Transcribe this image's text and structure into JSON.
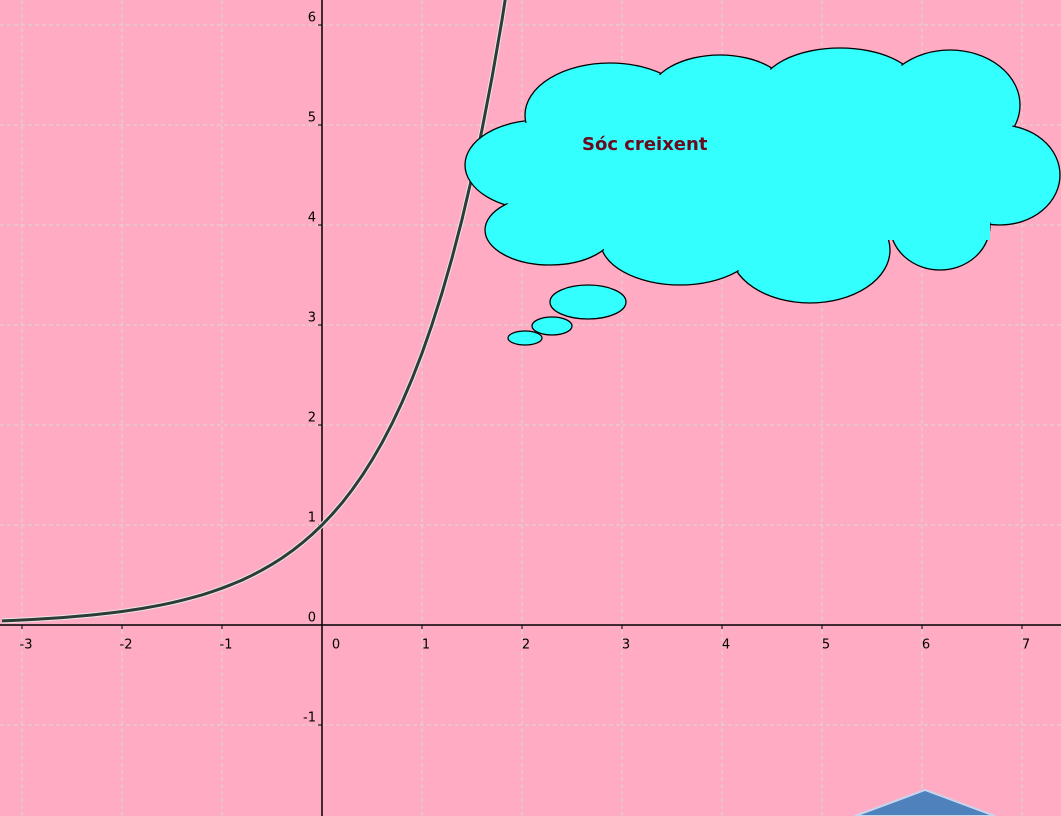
{
  "chart_data": {
    "type": "line",
    "annotation": "Sóc creixent",
    "x": [
      -3.2,
      -3.1,
      -3.0,
      -2.9,
      -2.8,
      -2.7,
      -2.6,
      -2.5,
      -2.4,
      -2.3,
      -2.2,
      -2.1,
      -2.0,
      -1.9,
      -1.8,
      -1.7,
      -1.6,
      -1.5,
      -1.4,
      -1.3,
      -1.2,
      -1.1,
      -1.0,
      -0.9,
      -0.8,
      -0.7,
      -0.6,
      -0.5,
      -0.4,
      -0.3,
      -0.2,
      -0.1,
      0,
      0.1,
      0.2,
      0.3,
      0.4,
      0.5,
      0.6,
      0.7,
      0.8,
      0.9,
      1.0,
      1.1,
      1.2,
      1.3,
      1.4,
      1.5,
      1.6,
      1.7,
      1.8,
      1.9
    ],
    "values": [
      0.041,
      0.045,
      0.05,
      0.055,
      0.061,
      0.067,
      0.074,
      0.082,
      0.091,
      0.1,
      0.111,
      0.122,
      0.135,
      0.15,
      0.165,
      0.183,
      0.202,
      0.223,
      0.247,
      0.273,
      0.301,
      0.333,
      0.368,
      0.407,
      0.449,
      0.497,
      0.549,
      0.607,
      0.67,
      0.741,
      0.819,
      0.905,
      1,
      1.105,
      1.221,
      1.35,
      1.492,
      1.649,
      1.822,
      2.014,
      2.226,
      2.46,
      2.718,
      3.004,
      3.32,
      3.669,
      4.055,
      4.482,
      4.953,
      5.474,
      6.05,
      6.686
    ],
    "color": "#2e3b36",
    "xlim": [
      -3.22,
      7.39
    ],
    "ylim": [
      -1.91,
      6.25
    ],
    "xticks": [
      -3,
      -2,
      -1,
      0,
      1,
      2,
      3,
      4,
      5,
      6,
      7
    ],
    "yticks": [
      -1,
      0,
      1,
      2,
      3,
      4,
      5,
      6
    ],
    "grid": true
  }
}
